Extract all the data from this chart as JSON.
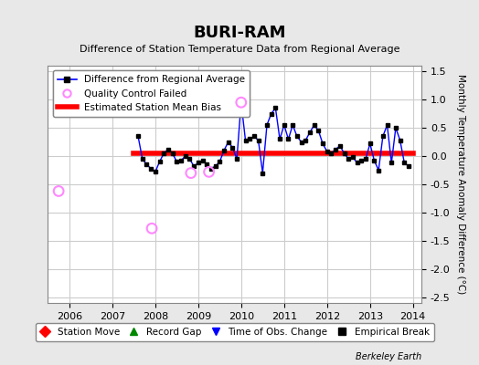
{
  "title": "BURI-RAM",
  "subtitle": "Difference of Station Temperature Data from Regional Average",
  "ylabel": "Monthly Temperature Anomaly Difference (°C)",
  "xlabel_years": [
    2006,
    2007,
    2008,
    2009,
    2010,
    2011,
    2012,
    2013,
    2014
  ],
  "xlim": [
    2005.5,
    2014.2
  ],
  "ylim": [
    -2.6,
    1.6
  ],
  "yticks": [
    -2.5,
    -2.0,
    -1.5,
    -1.0,
    -0.5,
    0.0,
    0.5,
    1.0,
    1.5
  ],
  "bias_line_y": 0.05,
  "bias_x_start": 2007.5,
  "bias_x_end": 2014.0,
  "background_color": "#e8e8e8",
  "plot_bg_color": "#ffffff",
  "grid_color": "#cccccc",
  "main_line_color": "#0000ff",
  "bias_line_color": "#ff0000",
  "qc_fail_color": "#ff88ff",
  "data_points_x": [
    2007.6,
    2007.7,
    2007.8,
    2007.9,
    2008.0,
    2008.1,
    2008.2,
    2008.3,
    2008.4,
    2008.5,
    2008.6,
    2008.7,
    2008.8,
    2008.9,
    2009.0,
    2009.1,
    2009.2,
    2009.3,
    2009.4,
    2009.5,
    2009.6,
    2009.7,
    2009.8,
    2009.9,
    2010.0,
    2010.1,
    2010.2,
    2010.3,
    2010.4,
    2010.5,
    2010.6,
    2010.7,
    2010.8,
    2010.9,
    2011.0,
    2011.1,
    2011.2,
    2011.3,
    2011.4,
    2011.5,
    2011.6,
    2011.7,
    2011.8,
    2011.9,
    2012.0,
    2012.1,
    2012.2,
    2012.3,
    2012.4,
    2012.5,
    2012.6,
    2012.7,
    2012.8,
    2012.9,
    2013.0,
    2013.1,
    2013.2,
    2013.3,
    2013.4,
    2013.5,
    2013.6,
    2013.7,
    2013.8,
    2013.9
  ],
  "data_points_y": [
    0.35,
    -0.05,
    -0.15,
    -0.22,
    -0.28,
    -0.1,
    0.05,
    0.12,
    0.05,
    -0.1,
    -0.08,
    0.0,
    -0.05,
    -0.18,
    -0.12,
    -0.08,
    -0.15,
    -0.22,
    -0.18,
    -0.1,
    0.1,
    0.25,
    0.15,
    -0.05,
    0.95,
    0.28,
    0.3,
    0.35,
    0.28,
    -0.3,
    0.55,
    0.75,
    0.85,
    0.3,
    0.55,
    0.3,
    0.55,
    0.35,
    0.25,
    0.28,
    0.42,
    0.55,
    0.45,
    0.22,
    0.08,
    0.05,
    0.12,
    0.18,
    0.05,
    -0.05,
    -0.02,
    -0.12,
    -0.08,
    -0.05,
    0.22,
    -0.08,
    -0.25,
    0.35,
    0.55,
    -0.12,
    0.5,
    0.28,
    -0.12,
    -0.18
  ],
  "qc_fail_x": [
    2005.75,
    2007.92,
    2008.83,
    2009.25,
    2010.0
  ],
  "qc_fail_y": [
    -0.62,
    -1.28,
    -0.3,
    -0.28,
    0.95
  ],
  "berkeley_earth_text": "Berkeley Earth",
  "legend1_items": [
    {
      "label": "Difference from Regional Average",
      "color": "#0000ff",
      "type": "line"
    },
    {
      "label": "Quality Control Failed",
      "color": "#ff88ff",
      "type": "circle"
    },
    {
      "label": "Estimated Station Mean Bias",
      "color": "#ff0000",
      "type": "line_thick"
    }
  ],
  "legend2_items": [
    {
      "label": "Station Move",
      "color": "#ff0000",
      "type": "diamond"
    },
    {
      "label": "Record Gap",
      "color": "#008800",
      "type": "triangle_up"
    },
    {
      "label": "Time of Obs. Change",
      "color": "#0000ff",
      "type": "triangle_down"
    },
    {
      "label": "Empirical Break",
      "color": "#000000",
      "type": "square"
    }
  ]
}
